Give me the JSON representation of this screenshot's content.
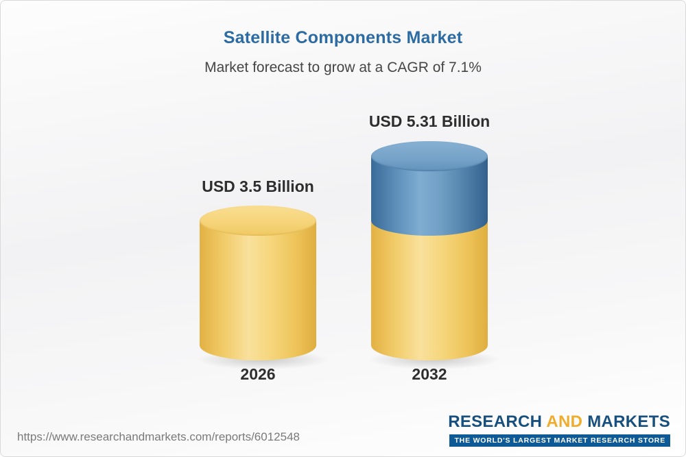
{
  "header": {
    "title": "Satellite Components Market",
    "subtitle": "Market forecast to grow at a CAGR of 7.1%"
  },
  "chart_data": {
    "type": "bar",
    "variant": "3d-cylinder",
    "title": "Satellite Components Market",
    "subtitle": "Market forecast to grow at a CAGR of 7.1%",
    "cagr": "7.1%",
    "unit": "USD Billion",
    "categories": [
      "2026",
      "2032"
    ],
    "values": [
      3.5,
      5.31
    ],
    "value_labels": [
      "USD 3.5 Billion",
      "USD 5.31 Billion"
    ],
    "legend": false,
    "axes": false,
    "colors": {
      "gold": "#F2CD6C",
      "blue": "#5E90BA",
      "title": "#2D6BA3",
      "label": "#2E2E2E"
    },
    "layout_note": "2032 cylinder: gold base segment equal to 2026 value, blue top segment is growth portion"
  },
  "footer": {
    "url": "https://www.researchandmarkets.com/reports/6012548",
    "logo": {
      "word1": "RESEARCH",
      "word2": "AND",
      "word3": "MARKETS",
      "tagline": "THE WORLD'S LARGEST MARKET RESEARCH STORE"
    }
  }
}
